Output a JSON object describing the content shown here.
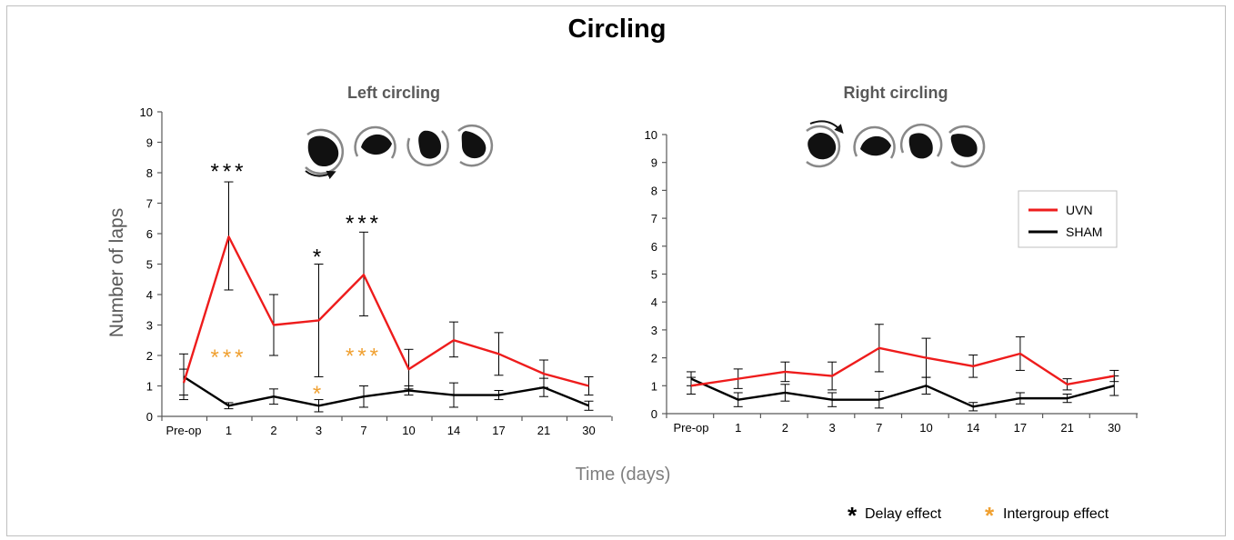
{
  "figure": {
    "title": "Circling",
    "xlabel": "Time (days)",
    "ylabel": "Number of laps"
  },
  "chart_data": [
    {
      "type": "line",
      "title": "Left circling",
      "xlabel": "Time (days)",
      "ylabel": "Number of laps",
      "categories": [
        "Pre-op",
        "1",
        "2",
        "3",
        "7",
        "10",
        "14",
        "17",
        "21",
        "30"
      ],
      "ylim": [
        0,
        10
      ],
      "yticks": [
        0,
        1,
        2,
        3,
        4,
        5,
        6,
        7,
        8,
        9,
        10
      ],
      "grid": false,
      "series": [
        {
          "name": "UVN",
          "color": "#ee1c1c",
          "values": [
            1.1,
            5.9,
            3.0,
            3.15,
            4.65,
            1.55,
            2.5,
            2.05,
            1.4,
            1.0
          ],
          "err_lo": [
            0.4,
            1.75,
            1.0,
            1.85,
            1.35,
            0.65,
            0.55,
            0.7,
            0.45,
            0.3
          ],
          "err_hi": [
            0.45,
            1.8,
            1.0,
            1.85,
            1.4,
            0.65,
            0.6,
            0.7,
            0.45,
            0.3
          ]
        },
        {
          "name": "SHAM",
          "color": "#000000",
          "values": [
            1.3,
            0.35,
            0.65,
            0.35,
            0.65,
            0.85,
            0.7,
            0.7,
            0.95,
            0.35
          ],
          "err_lo": [
            0.75,
            0.1,
            0.25,
            0.2,
            0.35,
            0.15,
            0.4,
            0.15,
            0.3,
            0.15
          ],
          "err_hi": [
            0.75,
            0.1,
            0.25,
            0.2,
            0.35,
            0.15,
            0.4,
            0.15,
            0.3,
            0.15
          ]
        }
      ],
      "annotations": [
        {
          "category": "1",
          "y": 8.1,
          "text": "***",
          "kind": "delay"
        },
        {
          "category": "3",
          "y": 5.3,
          "text": "*",
          "kind": "delay"
        },
        {
          "category": "7",
          "y": 6.4,
          "text": "***",
          "kind": "delay"
        },
        {
          "category": "1",
          "y": 2.0,
          "text": "***",
          "kind": "intergroup"
        },
        {
          "category": "3",
          "y": 0.8,
          "text": "*",
          "kind": "intergroup"
        },
        {
          "category": "7",
          "y": 2.05,
          "text": "***",
          "kind": "intergroup"
        }
      ]
    },
    {
      "type": "line",
      "title": "Right circling",
      "categories": [
        "Pre-op",
        "1",
        "2",
        "3",
        "7",
        "10",
        "14",
        "17",
        "21",
        "30"
      ],
      "ylim": [
        0,
        10
      ],
      "yticks": [
        0,
        1,
        2,
        3,
        4,
        5,
        6,
        7,
        8,
        9,
        10
      ],
      "grid": false,
      "series": [
        {
          "name": "UVN",
          "color": "#ee1c1c",
          "values": [
            1.0,
            1.25,
            1.5,
            1.35,
            2.35,
            2.0,
            1.7,
            2.15,
            1.05,
            1.35
          ],
          "err_lo": [
            0.3,
            0.35,
            0.35,
            0.5,
            0.85,
            0.7,
            0.4,
            0.6,
            0.2,
            0.2
          ],
          "err_hi": [
            0.3,
            0.35,
            0.35,
            0.5,
            0.85,
            0.7,
            0.4,
            0.6,
            0.2,
            0.2
          ]
        },
        {
          "name": "SHAM",
          "color": "#000000",
          "values": [
            1.25,
            0.5,
            0.75,
            0.5,
            0.5,
            1.0,
            0.25,
            0.55,
            0.55,
            1.0
          ],
          "err_lo": [
            0.25,
            0.25,
            0.3,
            0.25,
            0.3,
            0.3,
            0.15,
            0.2,
            0.15,
            0.35
          ],
          "err_hi": [
            0.25,
            0.25,
            0.3,
            0.25,
            0.3,
            0.3,
            0.15,
            0.2,
            0.15,
            0.35
          ]
        }
      ],
      "legend": {
        "placement": "top-right",
        "entries": [
          "UVN",
          "SHAM"
        ]
      }
    }
  ],
  "footer_legend": {
    "delay": {
      "symbol": "*",
      "label": "Delay effect",
      "color": "#000000"
    },
    "intergroup": {
      "symbol": "*",
      "label": "Intergroup effect",
      "color": "#f0a030"
    }
  },
  "colors": {
    "uvn": "#ee1c1c",
    "sham": "#000000",
    "intergroup": "#f0a030",
    "axis": "#595959"
  }
}
